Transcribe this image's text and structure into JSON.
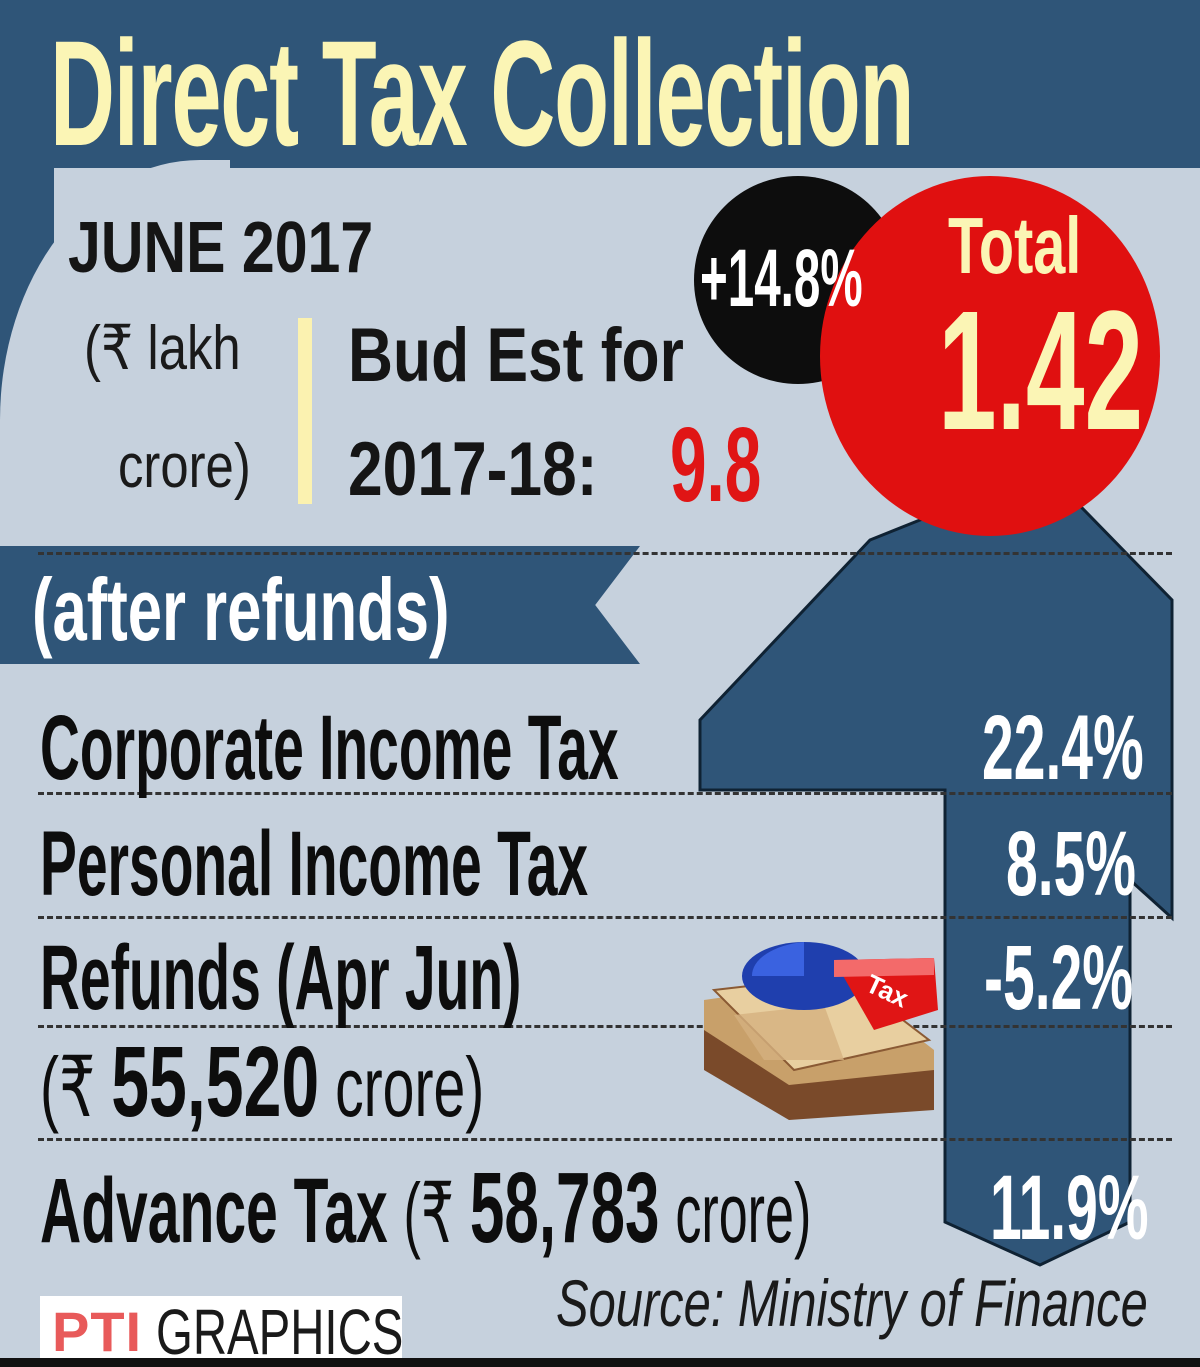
{
  "title": "Direct Tax Collection",
  "period": "JUNE 2017",
  "unit_line1": "(₹ lakh",
  "unit_line2": "crore)",
  "budget": {
    "label_line1": "Bud Est for",
    "label_line2": "2017-18:",
    "value": "9.8"
  },
  "growth": "+14.8%",
  "total": {
    "label": "Total",
    "value": "1.42"
  },
  "banner": "(after refunds)",
  "rows": [
    {
      "label": "Corporate Income Tax",
      "value": "22.4%"
    },
    {
      "label": "Personal Income Tax",
      "value": "8.5%"
    },
    {
      "label": "Refunds (Apr Jun)",
      "value": "-5.2%"
    },
    {
      "label": "Advance Tax",
      "value": "11.9%"
    }
  ],
  "refunds_detail": {
    "open": "(₹",
    "amount": "55,520",
    "close": "crore)"
  },
  "advance_detail": {
    "open": "(₹",
    "amount": "58,783",
    "close": "crore)"
  },
  "pie_label": "Tax",
  "source": "Source: Ministry of Finance",
  "credit": {
    "logo": "PTI",
    "text": "GRAPHICS"
  },
  "colors": {
    "navy": "#2f5578",
    "background": "#c6d1dd",
    "title_yellow": "#fbf5b5",
    "red": "#e01010",
    "black": "#0d0d0d"
  },
  "icons": [
    "up-arrow-graphic",
    "money-stack-pie-icon"
  ]
}
